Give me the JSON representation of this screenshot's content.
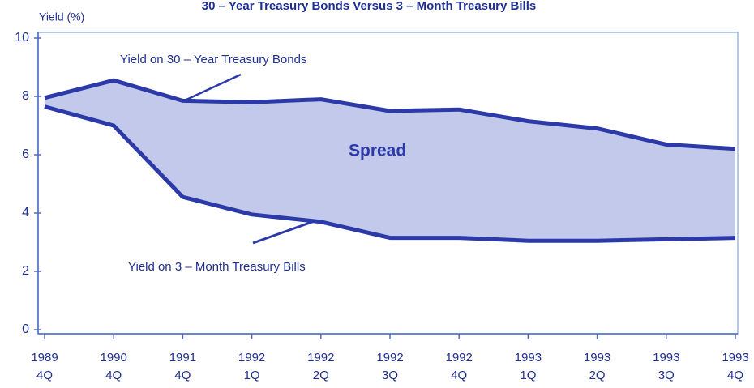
{
  "chart_data": {
    "type": "line",
    "title": "30 – Year Treasury Bonds Versus 3 – Month Treasury Bills",
    "y_label": "Yield (%)",
    "categories": [
      [
        "1989",
        "4Q"
      ],
      [
        "1990",
        "4Q"
      ],
      [
        "1991",
        "4Q"
      ],
      [
        "1992",
        "1Q"
      ],
      [
        "1992",
        "2Q"
      ],
      [
        "1992",
        "3Q"
      ],
      [
        "1992",
        "4Q"
      ],
      [
        "1993",
        "1Q"
      ],
      [
        "1993",
        "2Q"
      ],
      [
        "1993",
        "3Q"
      ],
      [
        "1993",
        "4Q"
      ]
    ],
    "series": [
      {
        "name": "Yield on 30 – Year Treasury Bonds",
        "color": "#2b3aa8",
        "values": [
          7.95,
          8.55,
          7.85,
          7.8,
          7.9,
          7.5,
          7.55,
          7.15,
          6.9,
          6.35,
          6.2
        ]
      },
      {
        "name": "Yield on 3 – Month Treasury Bills",
        "color": "#2b3aa8",
        "values": [
          7.65,
          7.0,
          4.55,
          3.95,
          3.7,
          3.15,
          3.15,
          3.05,
          3.05,
          3.1,
          3.15
        ]
      }
    ],
    "area_label": "Spread",
    "area_color": "#c3c9ea",
    "ylim": [
      0,
      10
    ],
    "yticks": [
      0,
      2,
      4,
      6,
      8,
      10
    ]
  }
}
